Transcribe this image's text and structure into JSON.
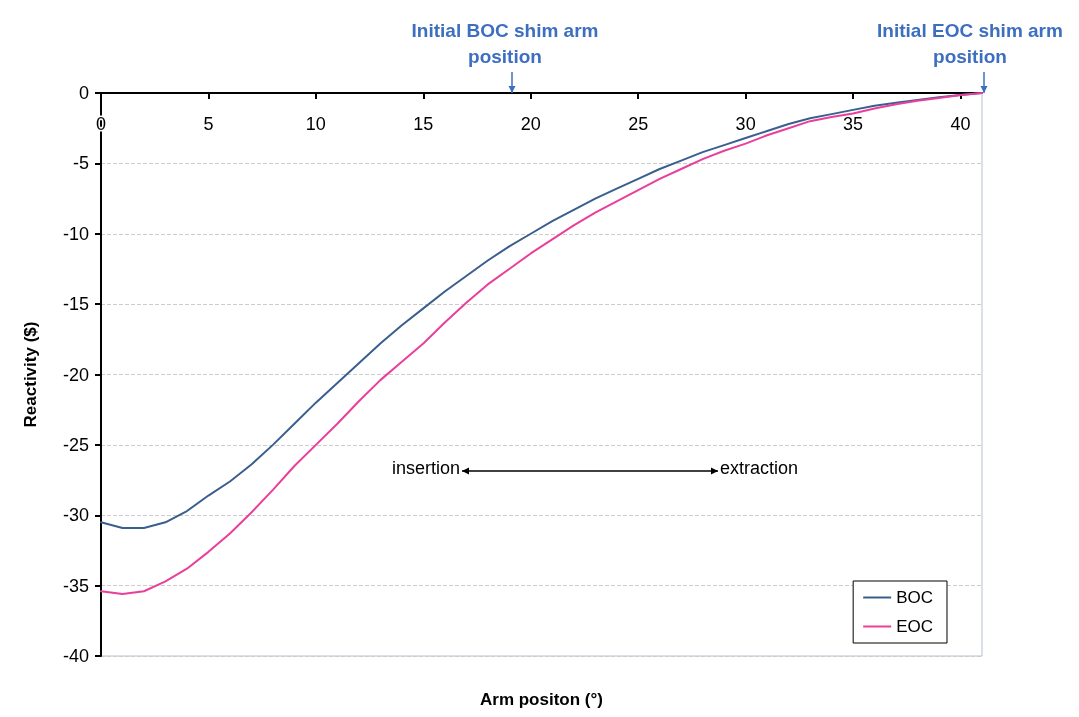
{
  "chart_data": {
    "type": "line",
    "xlabel": "Arm positon (°)",
    "ylabel": "Reactivity ($)",
    "x": [
      0,
      1,
      2,
      3,
      4,
      5,
      6,
      7,
      8,
      9,
      10,
      11,
      12,
      13,
      14,
      15,
      16,
      17,
      18,
      19,
      20,
      21,
      22,
      23,
      24,
      25,
      26,
      27,
      28,
      29,
      30,
      31,
      32,
      33,
      34,
      35,
      36,
      37,
      38,
      39,
      40,
      41
    ],
    "series": [
      {
        "name": "BOC",
        "color": "#3a5f8f",
        "values": [
          -30.5,
          -30.9,
          -30.9,
          -30.5,
          -29.7,
          -28.6,
          -27.6,
          -26.4,
          -25.0,
          -23.5,
          -22.0,
          -20.6,
          -19.2,
          -17.8,
          -16.5,
          -15.3,
          -14.1,
          -13.0,
          -11.9,
          -10.9,
          -10.0,
          -9.1,
          -8.3,
          -7.5,
          -6.8,
          -6.1,
          -5.4,
          -4.8,
          -4.2,
          -3.7,
          -3.2,
          -2.7,
          -2.2,
          -1.8,
          -1.5,
          -1.2,
          -0.9,
          -0.7,
          -0.5,
          -0.3,
          -0.15,
          0
        ]
      },
      {
        "name": "EOC",
        "color": "#e8409a",
        "values": [
          -35.4,
          -35.6,
          -35.4,
          -34.7,
          -33.8,
          -32.6,
          -31.3,
          -29.8,
          -28.2,
          -26.5,
          -25.0,
          -23.5,
          -21.9,
          -20.4,
          -19.1,
          -17.8,
          -16.3,
          -14.9,
          -13.6,
          -12.5,
          -11.4,
          -10.4,
          -9.4,
          -8.5,
          -7.7,
          -6.9,
          -6.1,
          -5.4,
          -4.7,
          -4.1,
          -3.6,
          -3.0,
          -2.5,
          -2.0,
          -1.7,
          -1.45,
          -1.1,
          -0.8,
          -0.55,
          -0.35,
          -0.15,
          0
        ]
      }
    ],
    "xlim": [
      0,
      41
    ],
    "xticks": [
      0,
      5,
      10,
      15,
      20,
      25,
      30,
      35,
      40
    ],
    "ylim": [
      -40,
      0
    ],
    "yticks": [
      -40,
      -35,
      -30,
      -25,
      -20,
      -15,
      -10,
      -5,
      0
    ],
    "annotations": [
      "Initial BOC shim arm position",
      "Initial EOC shim arm position",
      "insertion",
      "extraction"
    ],
    "grid": "y",
    "legend": "bottom right",
    "marker": "none",
    "line_style": "solid"
  }
}
